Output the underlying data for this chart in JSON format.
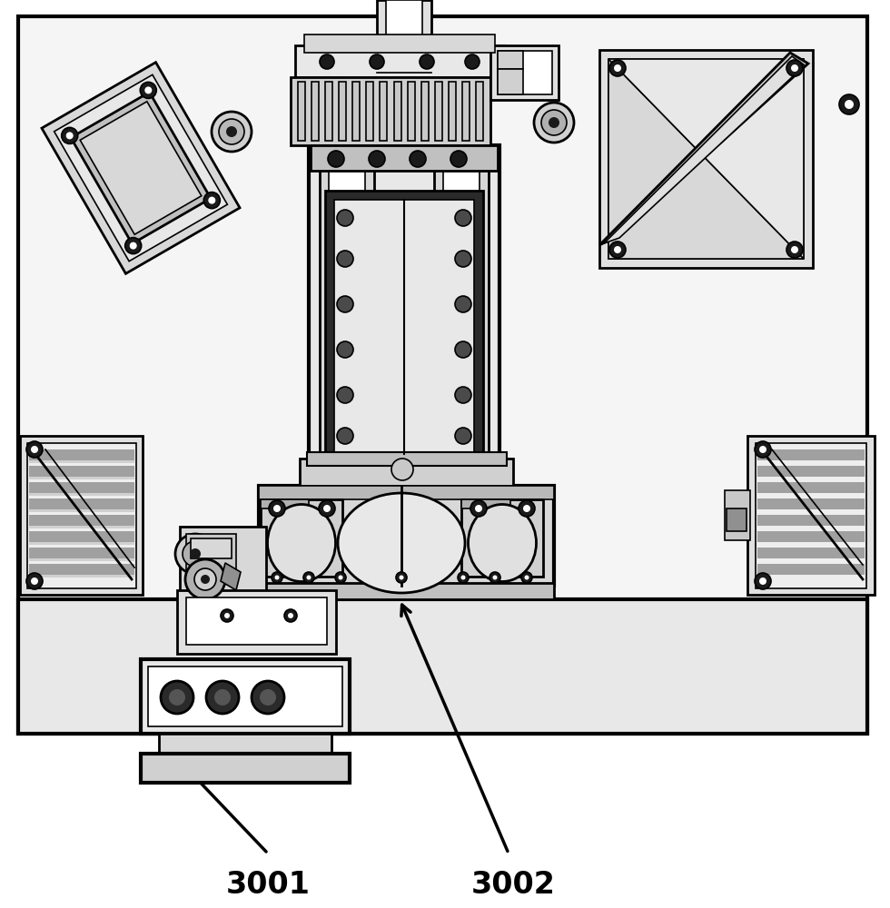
{
  "bg_color": "#ffffff",
  "line_color": "#000000",
  "dark_fill": "#1a1a1a",
  "gray_fill": "#aaaaaa",
  "light_gray": "#dddddd",
  "white_fill": "#ffffff",
  "label_3001": "3001",
  "label_3002": "3002",
  "fig_width": 9.8,
  "fig_height": 10.0,
  "dpi": 100
}
